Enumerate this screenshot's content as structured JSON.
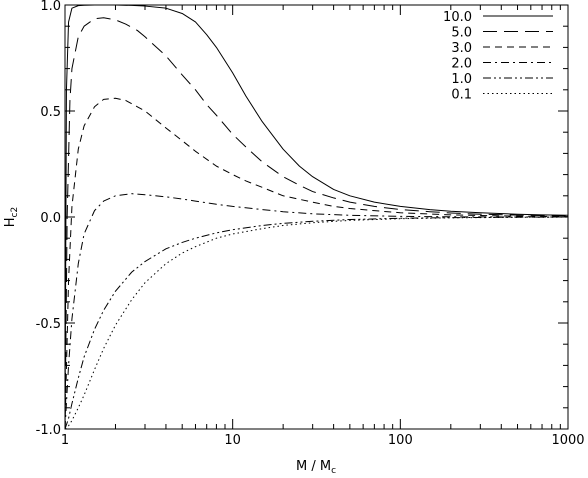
{
  "chart_data": {
    "type": "line",
    "xlabel": "M / M",
    "xlabel_sub": "c",
    "ylabel": "H",
    "ylabel_sub": "c2",
    "xscale": "log",
    "xlim": [
      1,
      1000
    ],
    "ylim": [
      -1.0,
      1.0
    ],
    "xticks": [
      {
        "value": 1,
        "label": "1"
      },
      {
        "value": 10,
        "label": "10"
      },
      {
        "value": 100,
        "label": "100"
      },
      {
        "value": 1000,
        "label": "1000"
      }
    ],
    "yticks": [
      {
        "value": -1.0,
        "label": "-1.0"
      },
      {
        "value": -0.5,
        "label": "-0.5"
      },
      {
        "value": 0.0,
        "label": "0.0"
      },
      {
        "value": 0.5,
        "label": "0.5"
      },
      {
        "value": 1.0,
        "label": "1.0"
      }
    ],
    "grid": false,
    "legend_position": "top-right",
    "series": [
      {
        "name": "10.0",
        "dash": "solid",
        "x": [
          1,
          1.02,
          1.05,
          1.1,
          1.2,
          1.3,
          1.5,
          1.7,
          2,
          2.5,
          3,
          4,
          5,
          6,
          7,
          8,
          10,
          12,
          15,
          20,
          25,
          30,
          40,
          50,
          70,
          100,
          150,
          200,
          300,
          500,
          700,
          1000
        ],
        "y": [
          -1.0,
          0.6,
          0.92,
          0.985,
          0.997,
          0.999,
          1.0,
          1.0,
          1.0,
          0.998,
          0.995,
          0.985,
          0.96,
          0.92,
          0.86,
          0.8,
          0.68,
          0.57,
          0.45,
          0.32,
          0.24,
          0.19,
          0.13,
          0.1,
          0.07,
          0.05,
          0.035,
          0.027,
          0.02,
          0.013,
          0.01,
          0.008
        ]
      },
      {
        "name": "5.0",
        "dash": "longdash",
        "x": [
          1,
          1.03,
          1.07,
          1.1,
          1.2,
          1.3,
          1.5,
          1.7,
          2,
          2.3,
          2.7,
          3,
          4,
          5,
          6,
          7,
          8,
          10,
          12,
          15,
          20,
          25,
          30,
          40,
          50,
          70,
          100,
          150,
          200,
          300,
          500,
          700,
          1000
        ],
        "y": [
          -1.0,
          0.0,
          0.55,
          0.7,
          0.85,
          0.9,
          0.935,
          0.94,
          0.93,
          0.91,
          0.88,
          0.85,
          0.76,
          0.67,
          0.6,
          0.53,
          0.48,
          0.39,
          0.33,
          0.26,
          0.19,
          0.15,
          0.12,
          0.09,
          0.07,
          0.05,
          0.035,
          0.025,
          0.019,
          0.013,
          0.009,
          0.007,
          0.005
        ]
      },
      {
        "name": "3.0",
        "dash": "shortdash",
        "x": [
          1,
          1.05,
          1.1,
          1.2,
          1.3,
          1.5,
          1.7,
          2,
          2.3,
          2.7,
          3,
          4,
          5,
          6,
          8,
          10,
          12,
          15,
          20,
          30,
          40,
          50,
          70,
          100,
          200,
          300,
          500,
          1000
        ],
        "y": [
          -1.0,
          -0.3,
          0.05,
          0.32,
          0.43,
          0.52,
          0.555,
          0.56,
          0.55,
          0.52,
          0.5,
          0.42,
          0.36,
          0.31,
          0.24,
          0.2,
          0.17,
          0.14,
          0.1,
          0.07,
          0.05,
          0.04,
          0.03,
          0.02,
          0.01,
          0.007,
          0.004,
          0.002
        ]
      },
      {
        "name": "2.0",
        "dash": "dashdot",
        "x": [
          1,
          1.05,
          1.1,
          1.2,
          1.3,
          1.5,
          1.7,
          2,
          2.5,
          3,
          4,
          5,
          6,
          8,
          10,
          15,
          20,
          30,
          50,
          100,
          200,
          500,
          1000
        ],
        "y": [
          -1.0,
          -0.7,
          -0.48,
          -0.22,
          -0.08,
          0.03,
          0.075,
          0.1,
          0.11,
          0.105,
          0.095,
          0.085,
          0.075,
          0.06,
          0.05,
          0.035,
          0.025,
          0.015,
          0.008,
          0.003,
          0.001,
          0.0,
          0.0
        ]
      },
      {
        "name": "1.0",
        "dash": "dashdotdot",
        "x": [
          1,
          1.05,
          1.1,
          1.2,
          1.3,
          1.5,
          1.7,
          2,
          2.5,
          3,
          4,
          5,
          6,
          8,
          10,
          15,
          20,
          30,
          50,
          100,
          200,
          500,
          1000
        ],
        "y": [
          -1.0,
          -0.95,
          -0.88,
          -0.76,
          -0.66,
          -0.53,
          -0.44,
          -0.35,
          -0.26,
          -0.21,
          -0.15,
          -0.12,
          -0.1,
          -0.075,
          -0.06,
          -0.04,
          -0.03,
          -0.02,
          -0.012,
          -0.006,
          -0.003,
          -0.001,
          0.0
        ]
      },
      {
        "name": "0.1",
        "dash": "dotted",
        "x": [
          1,
          1.05,
          1.1,
          1.2,
          1.3,
          1.5,
          1.7,
          2,
          2.5,
          3,
          4,
          5,
          6,
          8,
          10,
          15,
          20,
          30,
          50,
          100,
          200,
          500,
          1000
        ],
        "y": [
          -1.0,
          -0.985,
          -0.96,
          -0.9,
          -0.84,
          -0.72,
          -0.62,
          -0.51,
          -0.39,
          -0.31,
          -0.22,
          -0.17,
          -0.14,
          -0.1,
          -0.08,
          -0.055,
          -0.04,
          -0.027,
          -0.016,
          -0.008,
          -0.004,
          -0.0015,
          -0.0007
        ]
      }
    ]
  }
}
